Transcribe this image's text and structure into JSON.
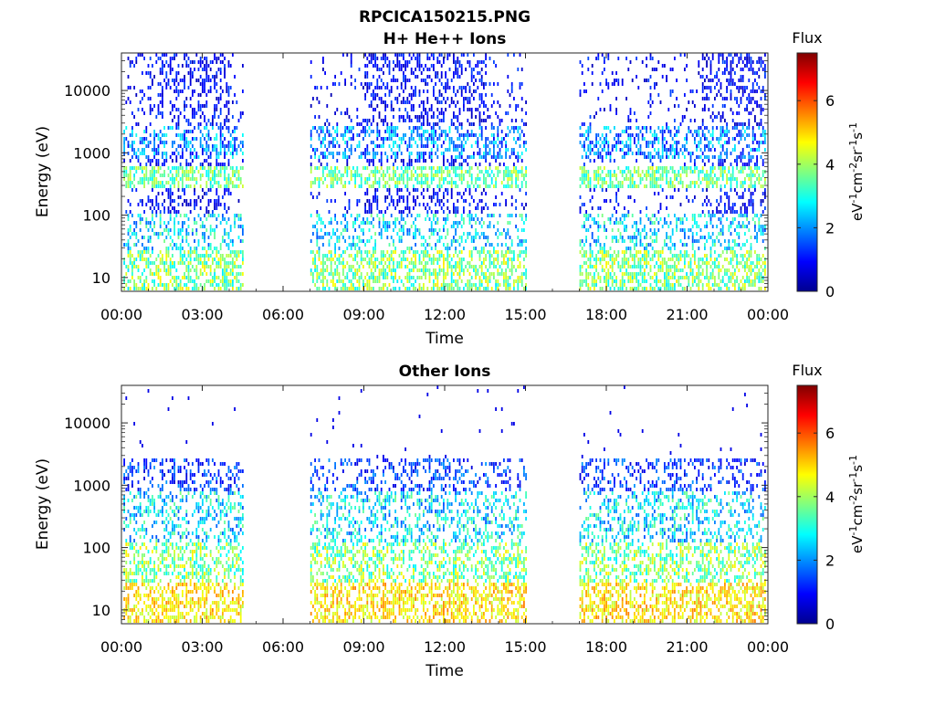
{
  "figure": {
    "title_line1": "RPCICA150215.PNG"
  },
  "chart_data": [
    {
      "type": "heatmap",
      "title": "H+ He++ Ions",
      "xlabel": "Time",
      "ylabel": "Energy (eV)",
      "x_tick_labels": [
        "00:00",
        "03:00",
        "06:00",
        "09:00",
        "12:00",
        "15:00",
        "18:00",
        "21:00",
        "00:00"
      ],
      "x_range_hours": [
        0,
        24
      ],
      "y_scale": "log",
      "y_range": [
        6,
        40000
      ],
      "y_ticks": [
        10,
        100,
        1000,
        10000
      ],
      "y_tick_labels": [
        "10",
        "100",
        "1000",
        "10000"
      ],
      "data_gaps_hours": [
        [
          4.5,
          7.0
        ],
        [
          15.0,
          17.0
        ]
      ],
      "colorbar": {
        "label": "Flux",
        "unit_label": "eV-1cm-2sr-1s-1",
        "range": [
          0,
          7.5
        ],
        "ticks": [
          0,
          2,
          4,
          6
        ],
        "tick_labels": [
          "0",
          "2",
          "4",
          "6"
        ],
        "colormap": [
          "#00008f",
          "#0000ff",
          "#00ffff",
          "#ffff00",
          "#ff0000",
          "#800000"
        ]
      }
    },
    {
      "type": "heatmap",
      "title": "Other Ions",
      "xlabel": "Time",
      "ylabel": "Energy (eV)",
      "x_tick_labels": [
        "00:00",
        "03:00",
        "06:00",
        "09:00",
        "12:00",
        "15:00",
        "18:00",
        "21:00",
        "00:00"
      ],
      "x_range_hours": [
        0,
        24
      ],
      "y_scale": "log",
      "y_range": [
        6,
        40000
      ],
      "y_ticks": [
        10,
        100,
        1000,
        10000
      ],
      "y_tick_labels": [
        "10",
        "100",
        "1000",
        "10000"
      ],
      "data_gaps_hours": [
        [
          4.5,
          7.0
        ],
        [
          15.0,
          17.0
        ]
      ],
      "colorbar": {
        "label": "Flux",
        "unit_label": "eV-1cm-2sr-1s-1",
        "range": [
          0,
          7.5
        ],
        "ticks": [
          0,
          2,
          4,
          6
        ],
        "tick_labels": [
          "0",
          "2",
          "4",
          "6"
        ],
        "colormap": [
          "#00008f",
          "#0000ff",
          "#00ffff",
          "#ffff00",
          "#ff0000",
          "#800000"
        ]
      }
    }
  ]
}
